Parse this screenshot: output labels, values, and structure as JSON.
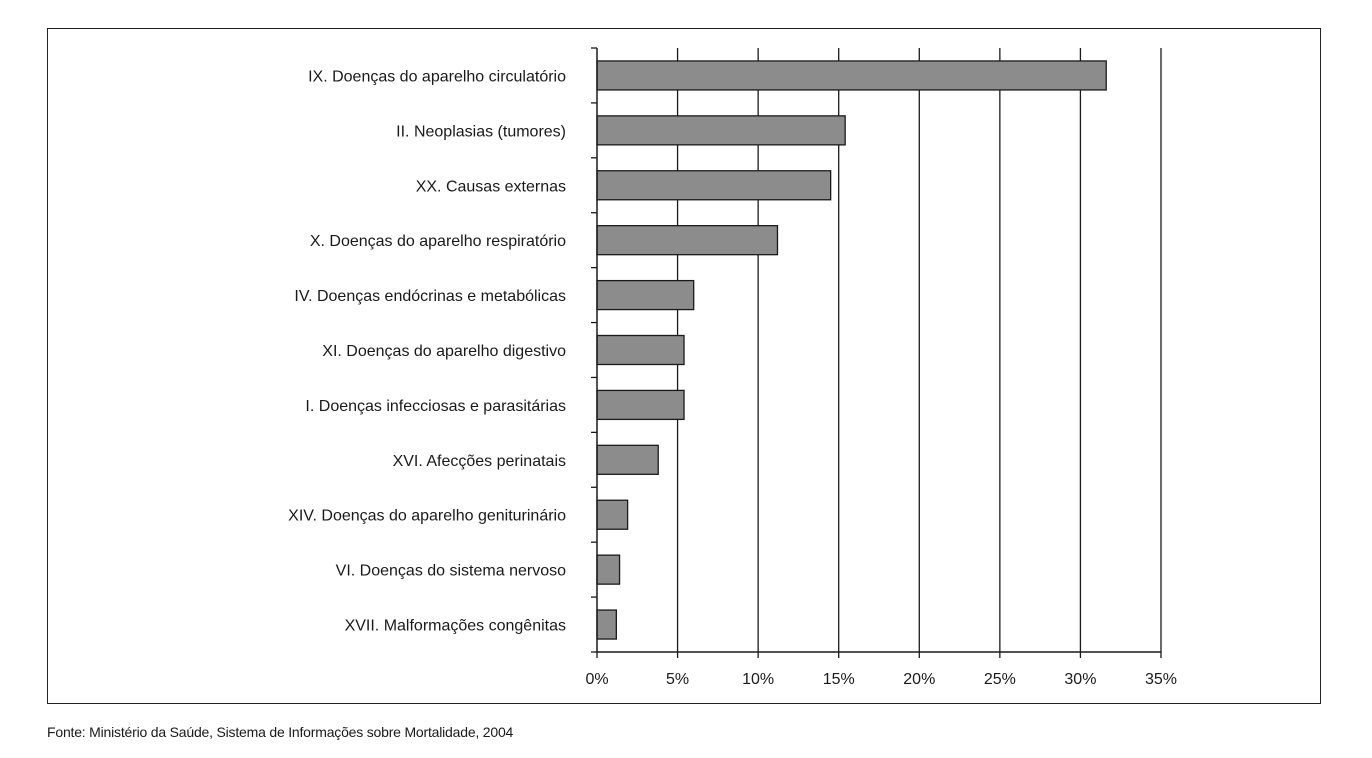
{
  "chart_data": {
    "type": "bar",
    "orientation": "horizontal",
    "categories": [
      "IX. Doenças do aparelho circulatório",
      "II. Neoplasias (tumores)",
      "XX. Causas externas",
      "X. Doenças do aparelho respiratório",
      "IV. Doenças endócrinas e metabólicas",
      "XI. Doenças do aparelho digestivo",
      "I. Doenças infecciosas e parasitárias",
      "XVI. Afecções perinatais",
      "XIV. Doenças do aparelho geniturinário",
      "VI. Doenças do sistema nervoso",
      "XVII. Malformações congênitas"
    ],
    "values": [
      31.6,
      15.4,
      14.5,
      11.2,
      6.0,
      5.4,
      5.4,
      3.8,
      1.9,
      1.4,
      1.2
    ],
    "xlim": [
      0,
      35
    ],
    "xticks": [
      0,
      5,
      10,
      15,
      20,
      25,
      30,
      35
    ],
    "xtick_labels": [
      "0%",
      "5%",
      "10%",
      "15%",
      "20%",
      "25%",
      "30%",
      "35%"
    ],
    "grid": "vertical",
    "bar_color": "#8c8c8c",
    "title": "",
    "xlabel": "",
    "ylabel": ""
  },
  "source": "Fonte: Ministério da Saúde, Sistema de Informações sobre Mortalidade, 2004"
}
